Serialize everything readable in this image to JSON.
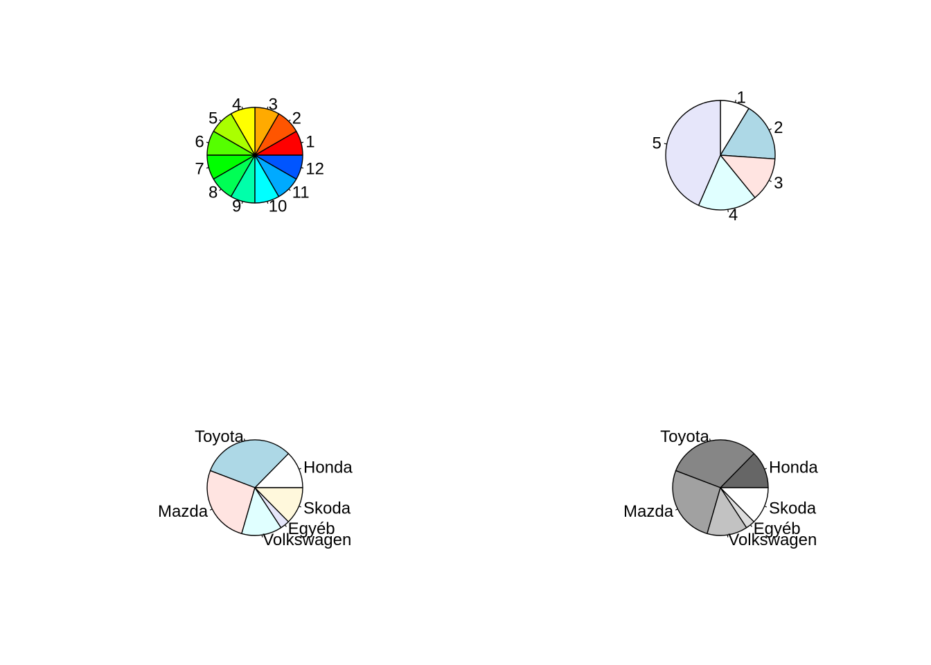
{
  "chart_data": [
    {
      "type": "pie",
      "labels": [
        "1",
        "2",
        "3",
        "4",
        "5",
        "6",
        "7",
        "8",
        "9",
        "10",
        "11",
        "12"
      ],
      "values": [
        1,
        1,
        1,
        1,
        1,
        1,
        1,
        1,
        1,
        1,
        1,
        1
      ],
      "colors": [
        "#FF0000",
        "#FF5500",
        "#FFAA00",
        "#FFFF00",
        "#AAFF00",
        "#55FF00",
        "#00FF00",
        "#00FF55",
        "#00FFAA",
        "#00FFFF",
        "#00AAFF",
        "#0055FF"
      ],
      "start_angle_deg": 0,
      "direction": "counterclockwise"
    },
    {
      "type": "pie",
      "labels": [
        "1",
        "2",
        "3",
        "4",
        "5"
      ],
      "values": [
        1,
        2,
        1.5,
        2,
        5
      ],
      "colors": [
        "#FFFFFF",
        "#ADD8E6",
        "#FFE4E1",
        "#E0FFFF",
        "#E6E6FA"
      ],
      "start_angle_deg": 90,
      "direction": "clockwise"
    },
    {
      "type": "pie",
      "labels": [
        "Honda",
        "Toyota",
        "Mazda",
        "Volkswagen",
        "Egyéb",
        "Skoda"
      ],
      "values": [
        12,
        30,
        25,
        13,
        3,
        12
      ],
      "colors": [
        "#FFFFFF",
        "#ADD8E6",
        "#FFE4E1",
        "#E0FFFF",
        "#E6E6FA",
        "#FFF8DC"
      ],
      "start_angle_deg": 0,
      "direction": "counterclockwise"
    },
    {
      "type": "pie",
      "labels": [
        "Honda",
        "Toyota",
        "Mazda",
        "Volkswagen",
        "Egyéb",
        "Skoda"
      ],
      "values": [
        12,
        30,
        25,
        13,
        3,
        12
      ],
      "colors": [
        "#666666",
        "#868686",
        "#A1A1A1",
        "#C2C2C2",
        "#DDDDDD",
        "#FFFFFF"
      ],
      "start_angle_deg": 0,
      "direction": "counterclockwise"
    }
  ]
}
